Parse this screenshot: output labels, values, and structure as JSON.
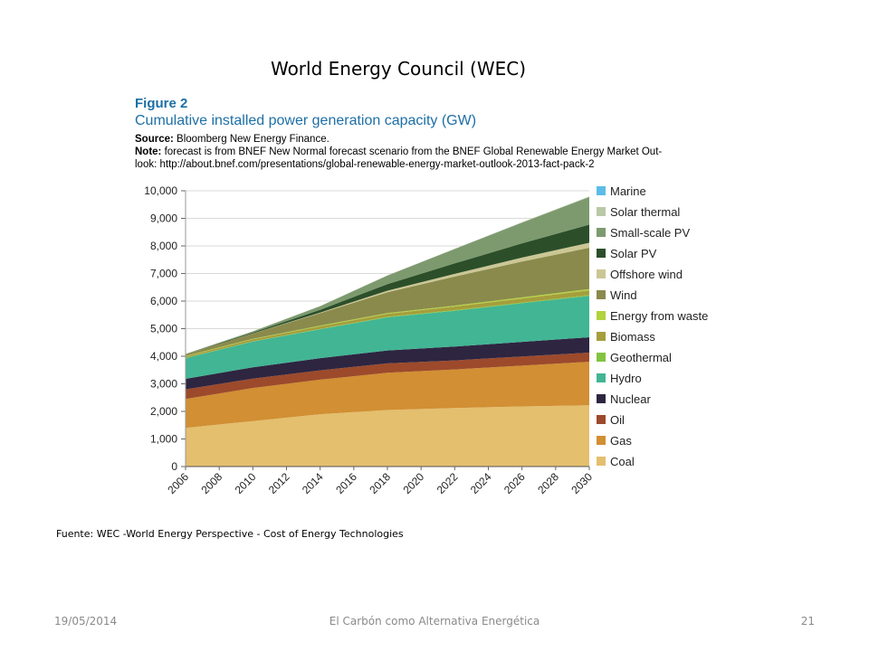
{
  "slide": {
    "title": "World Energy Council (WEC)",
    "source_note": "Fuente: WEC -World Energy Perspective - Cost of Energy Technologies",
    "footer_date": "19/05/2014",
    "footer_center": "El Carbón como Alternativa Energética",
    "footer_page": "21"
  },
  "figure": {
    "label": "Figure 2",
    "title": "Cumulative installed power generation capacity (GW)",
    "source_label": "Source:",
    "source_text": "Bloomberg New Energy Finance.",
    "note_label": "Note:",
    "note_line1": "forecast is from BNEF New Normal forecast scenario from the BNEF Global Renewable Energy Market Out-",
    "note_line2": "look: http://about.bnef.com/presentations/global-renewable-energy-market-outlook-2013-fact-pack-2"
  },
  "chart_data": {
    "type": "area",
    "stacked": true,
    "x": [
      2006,
      2010,
      2014,
      2018,
      2022,
      2026,
      2030
    ],
    "x_tick_labels": [
      "2006",
      "2008",
      "2010",
      "2012",
      "2014",
      "2016",
      "2018",
      "2020",
      "2022",
      "2024",
      "2026",
      "2028",
      "2030"
    ],
    "y_tick_labels": [
      "0",
      "1,000",
      "2,000",
      "3,000",
      "4,000",
      "5,000",
      "6,000",
      "7,000",
      "8,000",
      "9,000",
      "10,000"
    ],
    "xlim": [
      2006,
      2030
    ],
    "ylim": [
      0,
      10000
    ],
    "grid": "horizontal",
    "legend_position": "right",
    "series": [
      {
        "name": "Coal",
        "color": "#e3bf6e",
        "values": [
          1400,
          1650,
          1900,
          2050,
          2120,
          2180,
          2220
        ]
      },
      {
        "name": "Gas",
        "color": "#d28f33",
        "values": [
          1050,
          1200,
          1250,
          1350,
          1400,
          1480,
          1580
        ]
      },
      {
        "name": "Oil",
        "color": "#9c4a2b",
        "values": [
          350,
          340,
          340,
          340,
          330,
          330,
          330
        ]
      },
      {
        "name": "Nuclear",
        "color": "#2e2541",
        "values": [
          380,
          410,
          440,
          470,
          500,
          530,
          560
        ]
      },
      {
        "name": "Hydro",
        "color": "#41b594",
        "values": [
          750,
          930,
          1050,
          1200,
          1300,
          1400,
          1500
        ]
      },
      {
        "name": "Geothermal",
        "color": "#83c341",
        "values": [
          10,
          12,
          15,
          18,
          22,
          26,
          30
        ]
      },
      {
        "name": "Biomass",
        "color": "#a59e3c",
        "values": [
          55,
          70,
          90,
          110,
          130,
          150,
          170
        ]
      },
      {
        "name": "Energy from waste",
        "color": "#b2d23e",
        "values": [
          15,
          20,
          25,
          30,
          35,
          40,
          45
        ]
      },
      {
        "name": "Wind",
        "color": "#8a8a4c",
        "values": [
          60,
          190,
          450,
          750,
          1050,
          1300,
          1500
        ]
      },
      {
        "name": "Offshore wind",
        "color": "#cbc794",
        "values": [
          2,
          5,
          25,
          60,
          100,
          140,
          180
        ]
      },
      {
        "name": "Solar PV",
        "color": "#2c4f2a",
        "values": [
          8,
          35,
          100,
          240,
          380,
          520,
          660
        ]
      },
      {
        "name": "Small-scale PV",
        "color": "#7d9a6f",
        "values": [
          5,
          40,
          130,
          310,
          520,
          750,
          1000
        ]
      },
      {
        "name": "Solar thermal",
        "color": "#b9c8a6",
        "values": [
          1,
          2,
          4,
          7,
          10,
          14,
          18
        ]
      },
      {
        "name": "Marine",
        "color": "#5cbde8",
        "values": [
          0,
          0,
          1,
          1,
          2,
          2,
          3
        ]
      }
    ]
  }
}
